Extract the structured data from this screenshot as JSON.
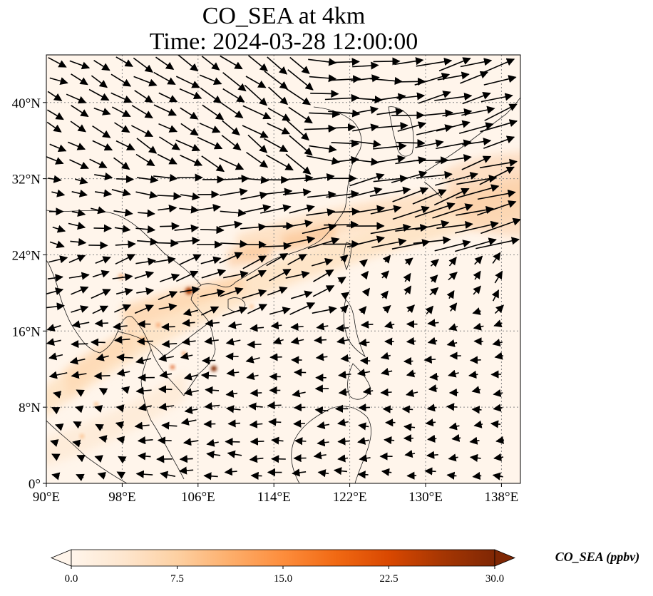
{
  "title_line1": "CO_SEA at 4km",
  "title_line2": "Time: 2024-03-28 12:00:00",
  "map": {
    "lon_range": [
      90,
      140
    ],
    "lat_range": [
      0,
      45
    ],
    "lon_ticks": [
      90,
      98,
      106,
      114,
      122,
      130,
      138
    ],
    "lon_tick_labels": [
      "90°E",
      "98°E",
      "106°E",
      "114°E",
      "122°E",
      "130°E",
      "138°E"
    ],
    "lat_ticks": [
      0,
      8,
      16,
      24,
      32,
      40
    ],
    "lat_tick_labels": [
      "0°",
      "8°N",
      "16°N",
      "24°N",
      "32°N",
      "40°N"
    ],
    "gridlines": true
  },
  "colorbar": {
    "label": "CO_SEA (ppbv)",
    "min": 0,
    "max": 30,
    "ticks": [
      0,
      7.5,
      15,
      22.5,
      30
    ],
    "tick_labels": [
      "0.0",
      "7.5",
      "15.0",
      "22.5",
      "30.0"
    ],
    "extend": "both",
    "colormap": [
      "#fff5eb",
      "#fee6ce",
      "#fdd0a2",
      "#fdae6b",
      "#fd8d3c",
      "#f16913",
      "#d94801",
      "#a63603",
      "#7f2704"
    ]
  },
  "colors": {
    "arrow": "#000000",
    "coast": "#1a1a1a",
    "grid": "#888888",
    "field_base": "#fff5eb"
  }
}
